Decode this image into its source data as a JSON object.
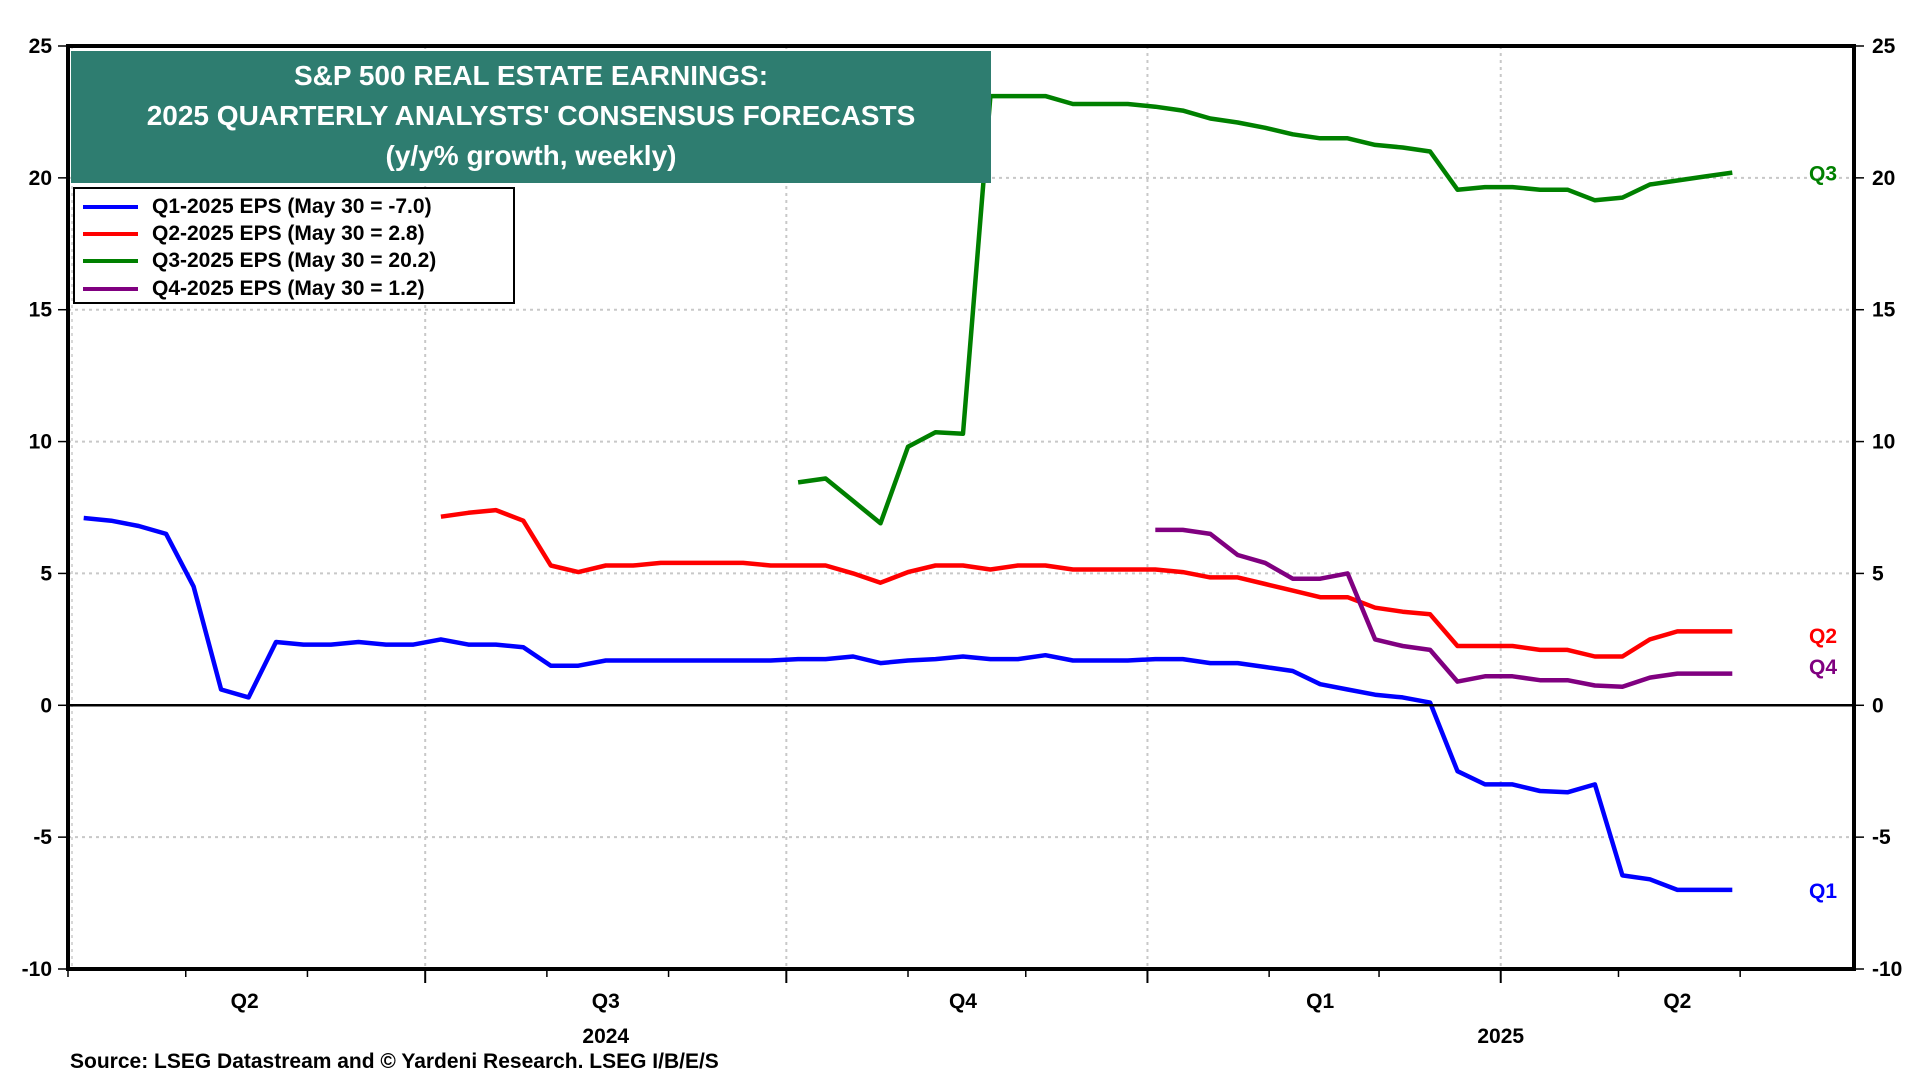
{
  "chart_data": {
    "type": "line",
    "title": "S&P 500 REAL ESTATE EARNINGS:",
    "title_line2": "2025 QUARTERLY ANALYSTS' CONSENSUS FORECASTS",
    "subtitle": "(y/y% growth, weekly)",
    "xlabel": "",
    "ylabel": "",
    "ylim": [
      -10,
      25
    ],
    "yticks": [
      -10,
      -5,
      0,
      5,
      10,
      15,
      20,
      25
    ],
    "ytick_labels": [
      "-10",
      "-5",
      "0",
      "5",
      "10",
      "15",
      "20",
      "25"
    ],
    "xlim": [
      "2024-04-01",
      "2025-06-30"
    ],
    "x_quarter_labels": [
      {
        "label": "Q2",
        "center": "2024-05-16"
      },
      {
        "label": "Q3",
        "center": "2024-08-16"
      },
      {
        "label": "Q4",
        "center": "2024-11-15"
      },
      {
        "label": "Q1",
        "center": "2025-02-14"
      },
      {
        "label": "Q2",
        "center": "2025-05-16"
      }
    ],
    "x_year_labels": [
      {
        "label": "2024",
        "center": "2024-08-16"
      },
      {
        "label": "2025",
        "center": "2025-04-01"
      }
    ],
    "quarter_boundaries": [
      "2024-07-01",
      "2024-10-01",
      "2025-01-01",
      "2025-04-01"
    ],
    "month_ticks": [
      "2024-04-01",
      "2024-05-01",
      "2024-06-01",
      "2024-07-01",
      "2024-08-01",
      "2024-09-01",
      "2024-10-01",
      "2024-11-01",
      "2024-12-01",
      "2025-01-01",
      "2025-02-01",
      "2025-03-01",
      "2025-04-01",
      "2025-05-01",
      "2025-06-01"
    ],
    "grid": "dotted, y-major and quarter boundaries",
    "zero_line": true,
    "legend_position": "top-left",
    "first_week": "2024-04-05",
    "week_count": 61,
    "series": [
      {
        "name": "Q1-2025 EPS (May 30 = -7.0)",
        "short_label": "Q1",
        "color": "#0000ff",
        "start_week": 0,
        "values": [
          7.1,
          7.0,
          6.8,
          6.5,
          4.5,
          0.6,
          0.3,
          2.4,
          2.3,
          2.3,
          2.4,
          2.3,
          2.3,
          2.5,
          2.3,
          2.3,
          2.2,
          1.5,
          1.5,
          1.7,
          1.7,
          1.7,
          1.7,
          1.7,
          1.7,
          1.7,
          1.75,
          1.75,
          1.85,
          1.6,
          1.7,
          1.75,
          1.85,
          1.75,
          1.75,
          1.9,
          1.7,
          1.7,
          1.7,
          1.75,
          1.75,
          1.6,
          1.6,
          1.45,
          1.3,
          0.8,
          0.6,
          0.4,
          0.3,
          0.1,
          -2.5,
          -3.0,
          -3.0,
          -3.25,
          -3.3,
          -3.0,
          -6.45,
          -6.6,
          -7.0,
          -7.0,
          -7.0
        ]
      },
      {
        "name": "Q2-2025 EPS (May 30 = 2.8)",
        "short_label": "Q2",
        "color": "#ff0000",
        "start_week": 13,
        "values": [
          7.15,
          7.3,
          7.4,
          7.0,
          5.3,
          5.05,
          5.3,
          5.3,
          5.4,
          5.4,
          5.4,
          5.4,
          5.3,
          5.3,
          5.3,
          5.0,
          4.65,
          5.05,
          5.3,
          5.3,
          5.15,
          5.3,
          5.3,
          5.15,
          5.15,
          5.15,
          5.15,
          5.05,
          4.85,
          4.85,
          4.6,
          4.35,
          4.1,
          4.1,
          3.7,
          3.55,
          3.45,
          2.25,
          2.25,
          2.25,
          2.1,
          2.1,
          1.85,
          1.85,
          2.5,
          2.8,
          2.8,
          2.8
        ]
      },
      {
        "name": "Q3-2025 EPS (May 30 = 20.2)",
        "short_label": "Q3",
        "color": "#008000",
        "start_week": 26,
        "values": [
          8.45,
          8.6,
          7.75,
          6.9,
          9.8,
          10.35,
          10.3,
          23.1,
          23.1,
          23.1,
          22.8,
          22.8,
          22.8,
          22.7,
          22.55,
          22.25,
          22.1,
          21.9,
          21.65,
          21.5,
          21.5,
          21.25,
          21.15,
          21.0,
          19.55,
          19.65,
          19.65,
          19.55,
          19.55,
          19.15,
          19.25,
          19.75,
          19.9,
          20.05,
          20.2
        ]
      },
      {
        "name": "Q4-2025 EPS (May 30 = 1.2)",
        "short_label": "Q4",
        "color": "#800080",
        "start_week": 39,
        "values": [
          6.65,
          6.65,
          6.5,
          5.7,
          5.4,
          4.8,
          4.8,
          5.0,
          2.5,
          2.25,
          2.1,
          0.9,
          1.1,
          1.1,
          0.95,
          0.95,
          0.75,
          0.7,
          1.05,
          1.2,
          1.2,
          1.2
        ]
      }
    ]
  },
  "title": {
    "line1": "S&P 500 REAL ESTATE EARNINGS:",
    "line2": "2025 QUARTERLY ANALYSTS' CONSENSUS FORECASTS",
    "line3": "(y/y% growth, weekly)",
    "background_color": "#2e7d70"
  },
  "legend": [
    {
      "label": "Q1-2025 EPS (May 30 = -7.0)",
      "color": "#0000ff"
    },
    {
      "label": "Q2-2025 EPS (May 30 = 2.8)",
      "color": "#ff0000"
    },
    {
      "label": "Q3-2025 EPS (May 30 = 20.2)",
      "color": "#008000"
    },
    {
      "label": "Q4-2025 EPS (May 30 = 1.2)",
      "color": "#800080"
    }
  ],
  "source": "Source: LSEG Datastream and © Yardeni Research. LSEG I/B/E/S"
}
